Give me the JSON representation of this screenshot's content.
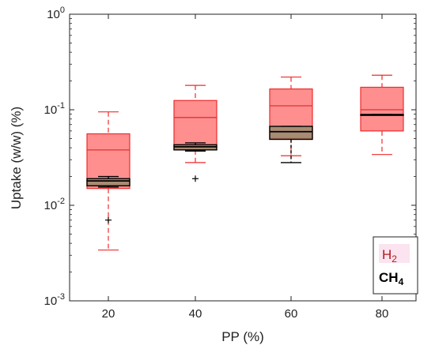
{
  "chart_data": {
    "type": "box",
    "xlabel": "PP (%)",
    "ylabel": "Uptake (w/w) (%)",
    "yscale": "log",
    "ylim": [
      0.001,
      1
    ],
    "categories": [
      "20",
      "40",
      "60",
      "80"
    ],
    "x_tick_labels": [
      "20",
      "40",
      "60",
      "80"
    ],
    "y_ticks": [
      {
        "value": 1,
        "base": "10",
        "exp": "0"
      },
      {
        "value": 0.1,
        "base": "10",
        "exp": "-1"
      },
      {
        "value": 0.01,
        "base": "10",
        "exp": "-2"
      },
      {
        "value": 0.001,
        "base": "10",
        "exp": "-3"
      }
    ],
    "grid": false,
    "legend_position": "bottom-right",
    "legend": [
      {
        "base": "H",
        "sub": "2",
        "color": "#b01c1c"
      },
      {
        "base": "CH",
        "sub": "4",
        "color": "#000000"
      }
    ],
    "series": [
      {
        "name": "H2",
        "box_color": "#ff7b7b",
        "line_color": "#ee2b2b",
        "median_color": "#e03030",
        "boxes": [
          {
            "category": "20",
            "whisker_low": 0.0034,
            "q1": 0.015,
            "median": 0.038,
            "q3": 0.056,
            "whisker_high": 0.095
          },
          {
            "category": "40",
            "whisker_low": 0.028,
            "q1": 0.038,
            "median": 0.083,
            "q3": 0.125,
            "whisker_high": 0.18
          },
          {
            "category": "60",
            "whisker_low": 0.033,
            "q1": 0.05,
            "median": 0.11,
            "q3": 0.165,
            "whisker_high": 0.22
          },
          {
            "category": "80",
            "whisker_low": 0.034,
            "q1": 0.06,
            "median": 0.1,
            "q3": 0.172,
            "whisker_high": 0.23
          }
        ],
        "outliers": []
      },
      {
        "name": "CH4",
        "box_color": "#8a8a6a",
        "line_color": "#000000",
        "median_color": "#000000",
        "boxes": [
          {
            "category": "20",
            "whisker_low": 0.0155,
            "q1": 0.016,
            "median": 0.018,
            "q3": 0.019,
            "whisker_high": 0.02
          },
          {
            "category": "40",
            "whisker_low": 0.037,
            "q1": 0.038,
            "median": 0.041,
            "q3": 0.043,
            "whisker_high": 0.045
          },
          {
            "category": "60",
            "whisker_low": 0.028,
            "q1": 0.049,
            "median": 0.059,
            "q3": 0.067,
            "whisker_high": 0.067
          },
          {
            "category": "80",
            "whisker_low": 0.089,
            "q1": 0.089,
            "median": 0.089,
            "q3": 0.089,
            "whisker_high": 0.089
          }
        ],
        "outliers": [
          {
            "category": "20",
            "value": 0.007
          },
          {
            "category": "40",
            "value": 0.019
          }
        ]
      }
    ]
  }
}
